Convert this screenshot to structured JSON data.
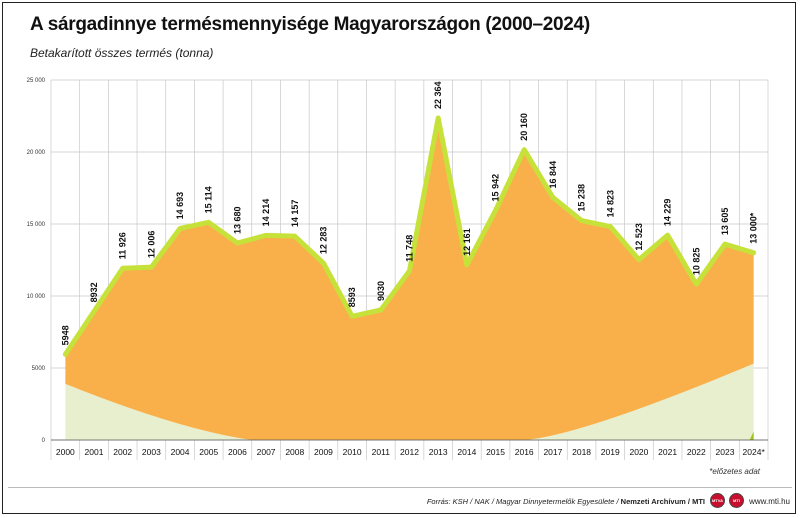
{
  "header": {
    "title": "A sárgadinnye termésmennyisége Magyarországon (2000–2024)",
    "subtitle": "Betakarított összes termés (tonna)"
  },
  "chart_data": {
    "type": "area",
    "title": "A sárgadinnye termésmennyisége Magyarországon (2000–2024)",
    "subtitle": "Betakarított összes termés (tonna)",
    "x": [
      "2000",
      "2001",
      "2002",
      "2003",
      "2004",
      "2005",
      "2006",
      "2007",
      "2008",
      "2009",
      "2010",
      "2011",
      "2012",
      "2013",
      "2014",
      "2015",
      "2016",
      "2017",
      "2018",
      "2019",
      "2020",
      "2021",
      "2022",
      "2023",
      "2024*"
    ],
    "series": [
      {
        "values": [
          5948,
          8932,
          11926,
          12006,
          14693,
          15114,
          13680,
          14214,
          14157,
          12283,
          8593,
          9030,
          11748,
          22364,
          12161,
          15942,
          20160,
          16844,
          15238,
          14823,
          12523,
          14229,
          10825,
          13605,
          13000
        ]
      }
    ],
    "data_labels": [
      "5948",
      "8932",
      "11 926",
      "12 006",
      "14 693",
      "15 114",
      "13 680",
      "14 214",
      "14 157",
      "12 283",
      "8593",
      "9030",
      "11 748",
      "22 364",
      "12 161",
      "15 942",
      "20 160",
      "16 844",
      "15 238",
      "14 823",
      "12 523",
      "14 229",
      "10 825",
      "13 605",
      "13 000*"
    ],
    "y_ticks": [
      0,
      5000,
      10000,
      15000,
      20000,
      25000
    ],
    "y_tick_labels": [
      "0",
      "5000",
      "10 000",
      "15 000",
      "20 000",
      "25 000"
    ],
    "ylim": [
      0,
      25000
    ],
    "grid": true,
    "colors": {
      "area": "#f9b04a",
      "line": "#c6e23a",
      "grid": "#c8c8c8",
      "decor": "#e8efcf"
    }
  },
  "footnote": "*előzetes adat",
  "footer": {
    "source_prefix": "Forrás: KSH / NAK / Magyar Dinnyetermelők Egyesülete / ",
    "source_bold": "Nemzeti Archívum / MTI",
    "logo1": "MTVA",
    "logo2": "MTI",
    "website": "www.mti.hu"
  }
}
